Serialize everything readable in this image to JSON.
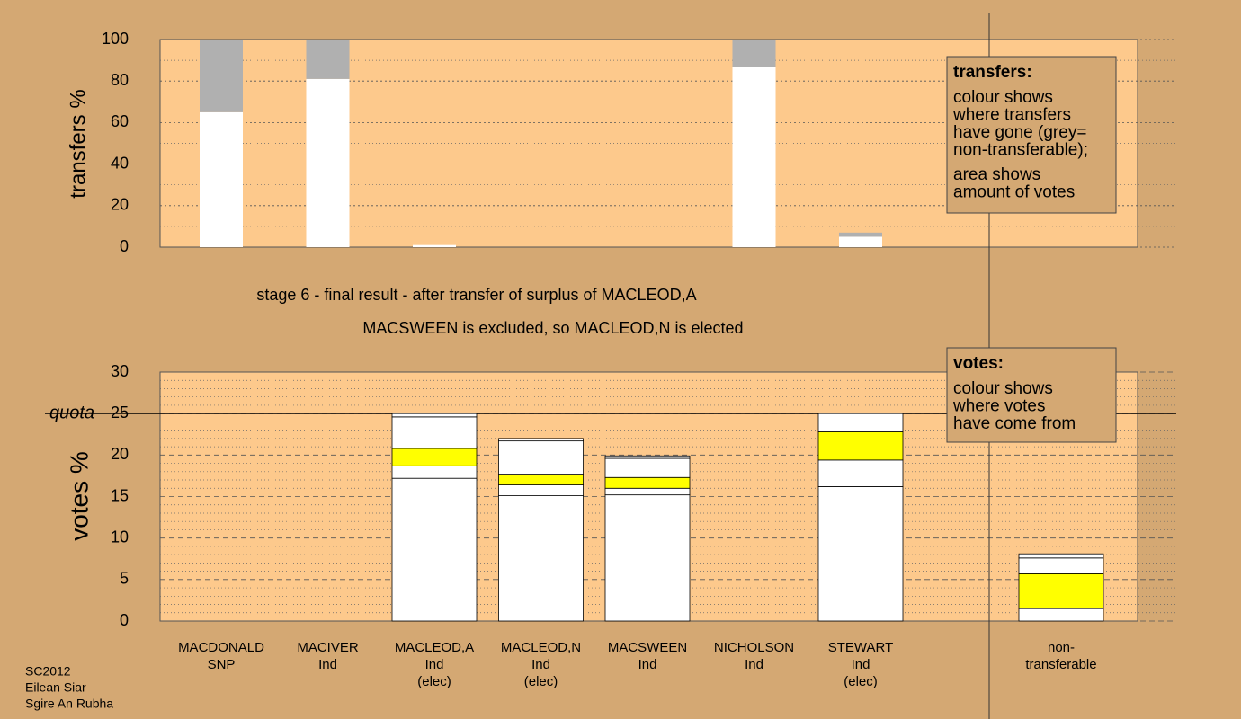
{
  "chart_data": [
    {
      "type": "bar",
      "stacked": true,
      "ylabel": "transfers %",
      "ylim": [
        0,
        100
      ],
      "yticks": [
        0,
        20,
        40,
        60,
        80,
        100
      ],
      "series": [
        {
          "color": "#ffffff",
          "values": [
            65,
            81,
            1,
            null,
            null,
            87,
            5
          ]
        },
        {
          "color": "#b0b0b0",
          "values": [
            35,
            19,
            0,
            null,
            null,
            13,
            2
          ]
        }
      ],
      "legend_box": {
        "title": "transfers:",
        "paragraphs": [
          [
            "colour shows",
            "where transfers",
            "have gone (grey=",
            "non-transferable);"
          ],
          [
            "area shows",
            "amount of votes"
          ]
        ]
      }
    },
    {
      "type": "bar",
      "stacked": true,
      "ylabel": "votes %",
      "title": "stage 6 - final result - after transfer of surplus of MACLEOD,A",
      "subtitle": "MACSWEEN is excluded, so MACLEOD,N is elected",
      "categories": [
        [
          "MACDONALD",
          "SNP"
        ],
        [
          "MACIVER",
          "Ind"
        ],
        [
          "MACLEOD,A",
          "Ind",
          "(elec)"
        ],
        [
          "MACLEOD,N",
          "Ind",
          "(elec)"
        ],
        [
          "MACSWEEN",
          "Ind"
        ],
        [
          "NICHOLSON",
          "Ind"
        ],
        [
          "STEWART",
          "Ind",
          "(elec)"
        ],
        [
          "non-",
          "transferable"
        ]
      ],
      "ylim": [
        0,
        30
      ],
      "yticks": [
        0,
        5,
        10,
        15,
        20,
        25,
        30
      ],
      "quota": {
        "value": 25,
        "label": "quota"
      },
      "series": [
        {
          "color": "#ffffff",
          "values": [
            0,
            0,
            17.2,
            15.1,
            15.2,
            0,
            16.2,
            1.5
          ]
        },
        {
          "color": "#ffffff",
          "values": [
            0,
            0,
            1.5,
            1.3,
            0.8,
            0,
            3.2,
            0
          ]
        },
        {
          "color": "#ffff00",
          "values": [
            0,
            0,
            2.1,
            1.3,
            1.3,
            0,
            3.4,
            4.2
          ]
        },
        {
          "color": "#ffffff",
          "values": [
            0,
            0,
            3.8,
            4.0,
            2.3,
            0,
            2.2,
            1.9
          ]
        },
        {
          "color": "#ffffff",
          "values": [
            0,
            0,
            0.4,
            0.3,
            0.3,
            0,
            0,
            0.5
          ]
        }
      ],
      "legend_box": {
        "title": "votes:",
        "paragraphs": [
          [
            "colour shows",
            "where votes",
            "have come from"
          ]
        ]
      }
    }
  ],
  "footer": [
    "SC2012",
    "Eilean Siar",
    "Sgire An Rubha"
  ]
}
